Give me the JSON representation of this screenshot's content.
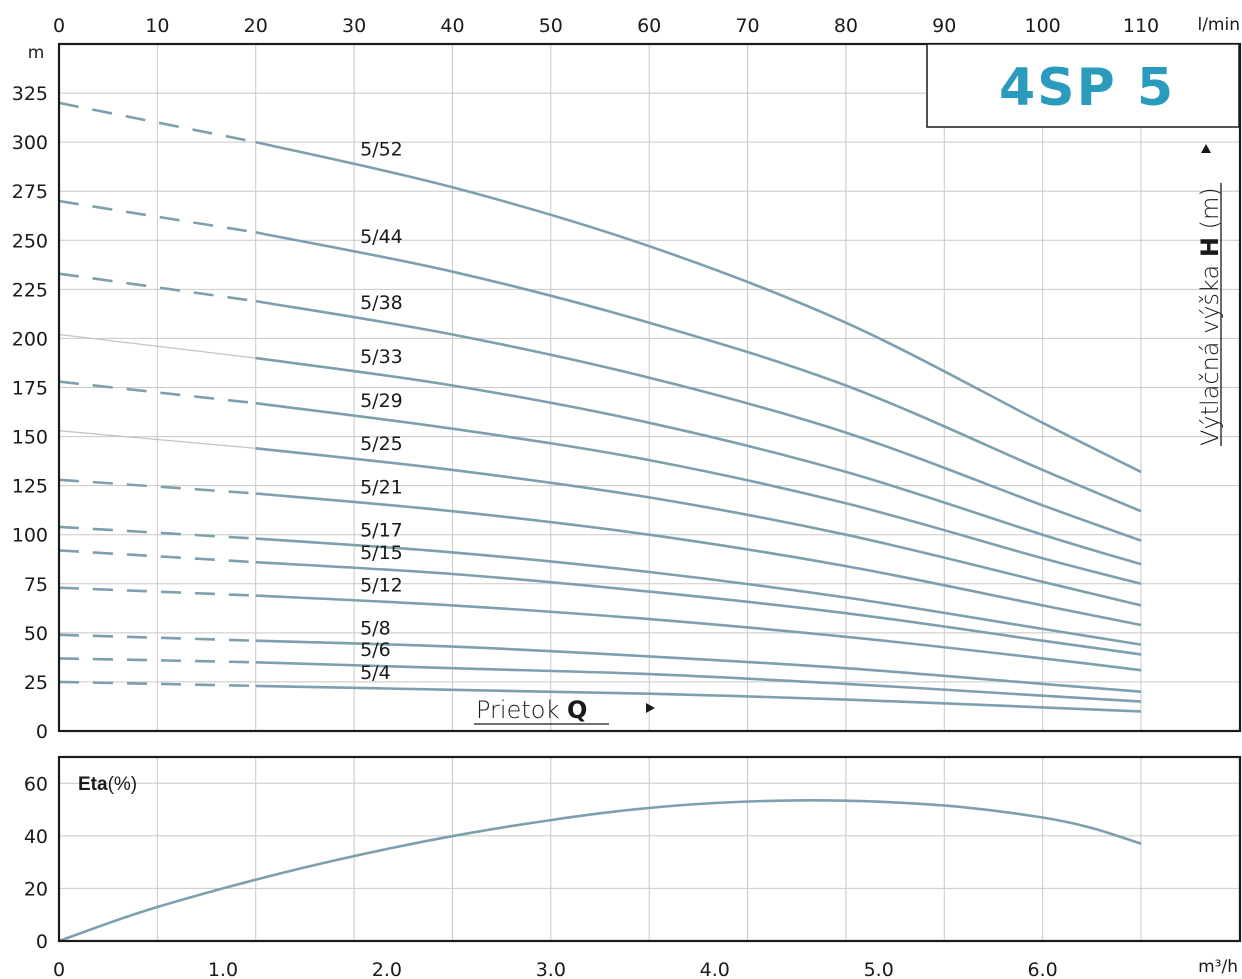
{
  "chart_data": [
    {
      "type": "line",
      "title": "4SP 5",
      "top_axis": {
        "unit": "l/min",
        "ticks": [
          "0",
          "10",
          "20",
          "30",
          "40",
          "50",
          "60",
          "70",
          "80",
          "90",
          "100",
          "110"
        ]
      },
      "y_axis": {
        "unit": "m",
        "title": "Výtlačná výška",
        "title_symbol": "H",
        "title_unit": "(m)",
        "ticks": [
          "0",
          "25",
          "50",
          "75",
          "100",
          "125",
          "150",
          "175",
          "200",
          "225",
          "250",
          "275",
          "300",
          "325"
        ],
        "ylim": [
          0,
          350
        ]
      },
      "x_axis": {
        "title": "Prietok",
        "title_symbol": "Q",
        "xlim": [
          0,
          110
        ]
      },
      "series": [
        {
          "name": "5/52",
          "dash_start": 20,
          "x": [
            0,
            20,
            40,
            60,
            80,
            100,
            110
          ],
          "values": [
            320,
            300,
            277,
            247,
            208,
            157,
            132
          ]
        },
        {
          "name": "5/44",
          "dash_start": 20,
          "x": [
            0,
            20,
            40,
            60,
            80,
            100,
            110
          ],
          "values": [
            270,
            254,
            234,
            208,
            176,
            133,
            112
          ]
        },
        {
          "name": "5/38",
          "dash_start": 20,
          "x": [
            0,
            20,
            40,
            60,
            80,
            100,
            110
          ],
          "values": [
            233,
            219,
            202,
            180,
            152,
            115,
            97
          ]
        },
        {
          "name": "5/33",
          "dash_start": 20,
          "thin_extension": true,
          "x": [
            0,
            20,
            40,
            60,
            80,
            100,
            110
          ],
          "values": [
            202,
            190,
            176,
            157,
            132,
            100,
            85
          ]
        },
        {
          "name": "5/29",
          "dash_start": 20,
          "x": [
            0,
            20,
            40,
            60,
            80,
            100,
            110
          ],
          "values": [
            178,
            167,
            154,
            138,
            116,
            88,
            75
          ]
        },
        {
          "name": "5/25",
          "dash_start": 20,
          "thin_extension": true,
          "x": [
            0,
            20,
            40,
            60,
            80,
            100,
            110
          ],
          "values": [
            153,
            144,
            133,
            119,
            100,
            76,
            64
          ]
        },
        {
          "name": "5/21",
          "dash_start": 20,
          "x": [
            0,
            20,
            40,
            60,
            80,
            100,
            110
          ],
          "values": [
            128,
            121,
            112,
            100,
            84,
            64,
            54
          ]
        },
        {
          "name": "5/17",
          "dash_start": 20,
          "x": [
            0,
            20,
            40,
            60,
            80,
            100,
            110
          ],
          "values": [
            104,
            98,
            91,
            81,
            68,
            52,
            44
          ]
        },
        {
          "name": "5/15",
          "dash_start": 20,
          "x": [
            0,
            20,
            40,
            60,
            80,
            100,
            110
          ],
          "values": [
            92,
            86,
            80,
            71,
            60,
            46,
            39
          ]
        },
        {
          "name": "5/12",
          "dash_start": 20,
          "x": [
            0,
            20,
            40,
            60,
            80,
            100,
            110
          ],
          "values": [
            73,
            69,
            64,
            57,
            48,
            37,
            31
          ]
        },
        {
          "name": "5/8",
          "dash_start": 20,
          "x": [
            0,
            20,
            40,
            60,
            80,
            100,
            110
          ],
          "values": [
            49,
            46,
            43,
            38,
            32,
            24,
            20
          ]
        },
        {
          "name": "5/6",
          "dash_start": 20,
          "x": [
            0,
            20,
            40,
            60,
            80,
            100,
            110
          ],
          "values": [
            37,
            35,
            32,
            29,
            24,
            18,
            15
          ]
        },
        {
          "name": "5/4",
          "dash_start": 20,
          "x": [
            0,
            20,
            40,
            60,
            80,
            100,
            110
          ],
          "values": [
            25,
            23,
            21,
            19,
            16,
            12,
            10
          ]
        }
      ],
      "grid": true,
      "colors": {
        "curve": "#7e9fad",
        "title": "#2a9bbd"
      }
    },
    {
      "type": "line",
      "y_label_bold": "Eta",
      "y_label_rest": "(%)",
      "x_axis": {
        "unit": "m³/h",
        "ticks": [
          "0",
          "1.0",
          "2.0",
          "3.0",
          "4.0",
          "5.0",
          "6.0"
        ],
        "xlim": [
          0,
          6.6
        ]
      },
      "y_axis": {
        "ticks": [
          "0",
          "20",
          "40",
          "60"
        ],
        "ylim": [
          0,
          70
        ]
      },
      "series": [
        {
          "x": [
            0,
            0.5,
            1.0,
            1.5,
            2.0,
            2.5,
            3.0,
            3.5,
            4.0,
            4.5,
            5.0,
            5.5,
            6.0,
            6.3,
            6.6
          ],
          "values": [
            0,
            11,
            20,
            28,
            35,
            41,
            46,
            50,
            52.5,
            53.5,
            53,
            51,
            47,
            43,
            37
          ]
        }
      ],
      "grid": true
    }
  ]
}
